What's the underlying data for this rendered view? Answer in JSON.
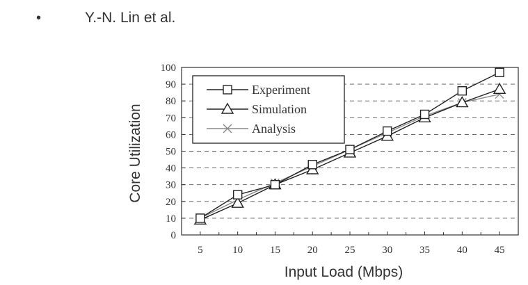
{
  "slide": {
    "bullet": "•",
    "author_text": "Y.-N. Lin et al."
  },
  "chart_data": {
    "type": "line",
    "xlabel": "Input Load (Mbps)",
    "ylabel": "Core Utilization",
    "x": [
      5,
      10,
      15,
      20,
      25,
      30,
      35,
      40,
      45
    ],
    "xlim": [
      2.5,
      47.5
    ],
    "ylim": [
      0,
      100
    ],
    "yticks": [
      0,
      10,
      20,
      30,
      40,
      50,
      60,
      70,
      80,
      90,
      100
    ],
    "grid": "horizontal dashed",
    "legend_position": "top-left",
    "series": [
      {
        "name": "Experiment",
        "marker": "square",
        "color": "#222222",
        "values": [
          10,
          24,
          30,
          42,
          51,
          62,
          72,
          86,
          97
        ]
      },
      {
        "name": "Simulation",
        "marker": "triangle",
        "color": "#222222",
        "values": [
          9,
          19,
          30,
          39,
          49,
          59,
          70,
          79,
          87
        ]
      },
      {
        "name": "Analysis",
        "marker": "x",
        "color": "#888888",
        "values": [
          10,
          21,
          31,
          41,
          51,
          61,
          71,
          79,
          84
        ]
      }
    ]
  }
}
